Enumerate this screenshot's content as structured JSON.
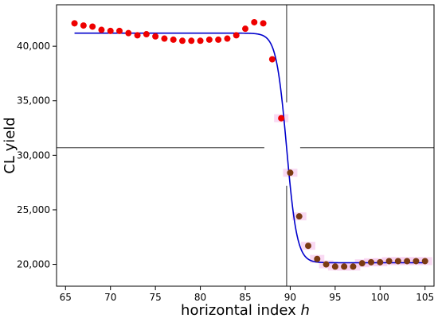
{
  "chart_data": {
    "type": "scatter",
    "xlabel": "horizontal index ",
    "xlabel_var": "h",
    "ylabel": "CL yield",
    "xlim": [
      64,
      106
    ],
    "ylim": [
      18000,
      43800
    ],
    "xticks": [
      {
        "value": 65,
        "label": "65"
      },
      {
        "value": 70,
        "label": "70"
      },
      {
        "value": 75,
        "label": "75"
      },
      {
        "value": 80,
        "label": "80"
      },
      {
        "value": 85,
        "label": "85"
      },
      {
        "value": 90,
        "label": "90"
      },
      {
        "value": 95,
        "label": "95"
      },
      {
        "value": 100,
        "label": "100"
      },
      {
        "value": 105,
        "label": "105"
      }
    ],
    "yticks": [
      {
        "value": 20000,
        "label": "20,000"
      },
      {
        "value": 25000,
        "label": "25,000"
      },
      {
        "value": 30000,
        "label": "30,000"
      },
      {
        "value": 35000,
        "label": "35,000"
      },
      {
        "value": 40000,
        "label": "40,000"
      }
    ],
    "grid": false,
    "series": [
      {
        "kind": "points",
        "color": "#ee0000",
        "points": [
          [
            66,
            42100
          ],
          [
            67,
            41900
          ],
          [
            68,
            41800
          ],
          [
            69,
            41500
          ],
          [
            70,
            41400
          ],
          [
            71,
            41400
          ],
          [
            72,
            41200
          ],
          [
            73,
            41000
          ],
          [
            74,
            41100
          ],
          [
            75,
            40900
          ],
          [
            76,
            40700
          ],
          [
            77,
            40600
          ],
          [
            78,
            40500
          ],
          [
            79,
            40500
          ],
          [
            80,
            40500
          ],
          [
            81,
            40600
          ],
          [
            82,
            40600
          ],
          [
            83,
            40700
          ],
          [
            84,
            41000
          ],
          [
            85,
            41600
          ],
          [
            86,
            42200
          ],
          [
            87,
            42100
          ],
          [
            88,
            38800
          ],
          [
            89,
            33400
          ]
        ]
      },
      {
        "kind": "points",
        "color": "#7a3a12",
        "points": [
          [
            90,
            28400
          ],
          [
            91,
            24400
          ],
          [
            92,
            21700
          ],
          [
            93,
            20500
          ],
          [
            94,
            20000
          ],
          [
            95,
            19800
          ],
          [
            96,
            19800
          ],
          [
            97,
            19800
          ],
          [
            98,
            20100
          ],
          [
            99,
            20200
          ],
          [
            100,
            20200
          ],
          [
            101,
            20300
          ],
          [
            102,
            20300
          ],
          [
            103,
            20300
          ],
          [
            104,
            20300
          ],
          [
            105,
            20300
          ]
        ]
      },
      {
        "kind": "fit_line",
        "color": "#0000cc",
        "model": "logistic",
        "upper": 41200,
        "lower": 20150,
        "center": 89.6,
        "scale": 0.58,
        "x_range": [
          66,
          105
        ]
      }
    ],
    "crosshair": {
      "color": "#555555",
      "x": 89.6,
      "y": 30700
    }
  }
}
